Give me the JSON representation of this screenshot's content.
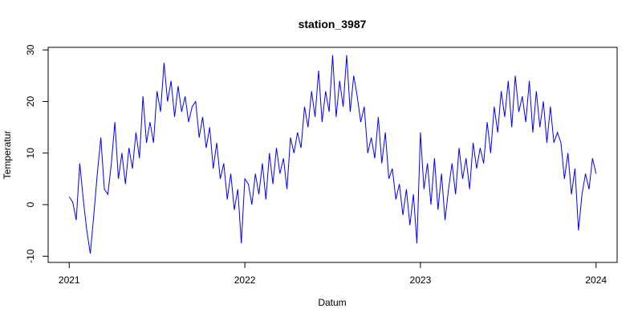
{
  "chart_data": {
    "type": "line",
    "title": "station_3987",
    "xlabel": "Datum",
    "ylabel": "Temperatur",
    "x": [
      2021.0,
      2021.02,
      2021.04,
      2021.06,
      2021.08,
      2021.1,
      2021.12,
      2021.14,
      2021.16,
      2021.18,
      2021.2,
      2021.22,
      2021.24,
      2021.26,
      2021.28,
      2021.3,
      2021.32,
      2021.34,
      2021.36,
      2021.38,
      2021.4,
      2021.42,
      2021.44,
      2021.46,
      2021.48,
      2021.5,
      2021.52,
      2021.54,
      2021.56,
      2021.58,
      2021.6,
      2021.62,
      2021.64,
      2021.66,
      2021.68,
      2021.7,
      2021.72,
      2021.74,
      2021.76,
      2021.78,
      2021.8,
      2021.82,
      2021.84,
      2021.86,
      2021.88,
      2021.9,
      2021.92,
      2021.94,
      2021.96,
      2021.98,
      2022.0,
      2022.02,
      2022.04,
      2022.06,
      2022.08,
      2022.1,
      2022.12,
      2022.14,
      2022.16,
      2022.18,
      2022.2,
      2022.22,
      2022.24,
      2022.26,
      2022.28,
      2022.3,
      2022.32,
      2022.34,
      2022.36,
      2022.38,
      2022.4,
      2022.42,
      2022.44,
      2022.46,
      2022.48,
      2022.5,
      2022.52,
      2022.54,
      2022.56,
      2022.58,
      2022.6,
      2022.62,
      2022.64,
      2022.66,
      2022.68,
      2022.7,
      2022.72,
      2022.74,
      2022.76,
      2022.78,
      2022.8,
      2022.82,
      2022.84,
      2022.86,
      2022.88,
      2022.9,
      2022.92,
      2022.94,
      2022.96,
      2022.98,
      2023.0,
      2023.02,
      2023.04,
      2023.06,
      2023.08,
      2023.1,
      2023.12,
      2023.14,
      2023.16,
      2023.18,
      2023.2,
      2023.22,
      2023.24,
      2023.26,
      2023.28,
      2023.3,
      2023.32,
      2023.34,
      2023.36,
      2023.38,
      2023.4,
      2023.42,
      2023.44,
      2023.46,
      2023.48,
      2023.5,
      2023.52,
      2023.54,
      2023.56,
      2023.58,
      2023.6,
      2023.62,
      2023.64,
      2023.66,
      2023.68,
      2023.7,
      2023.72,
      2023.74,
      2023.76,
      2023.78,
      2023.8,
      2023.82,
      2023.84,
      2023.86,
      2023.88,
      2023.9,
      2023.92,
      2023.94,
      2023.96,
      2023.98,
      2024.0
    ],
    "series": [
      {
        "color": "#0000ff",
        "values": [
          1.5,
          0.5,
          -3,
          8,
          1,
          -5,
          -9.5,
          -2,
          6,
          13,
          3,
          2,
          8,
          16,
          5,
          10,
          4,
          11,
          7,
          14,
          9,
          21,
          12,
          16,
          12,
          22,
          18,
          27.5,
          20,
          24,
          17,
          23,
          18,
          21,
          16,
          19,
          20,
          13,
          17,
          11,
          15,
          7,
          12,
          5,
          8,
          1,
          6,
          -1,
          3,
          -7.5,
          5,
          4,
          0,
          6,
          2,
          8,
          1,
          10,
          4,
          11,
          6,
          9,
          3,
          13,
          10,
          14,
          11,
          19,
          15,
          22,
          17,
          26,
          16,
          22,
          18,
          29,
          17,
          24,
          19,
          29,
          18,
          25,
          21,
          16,
          19,
          10,
          13,
          9,
          17,
          8,
          14,
          5,
          7,
          1,
          4,
          -2,
          3,
          -4,
          2,
          -7.5,
          14,
          3,
          8,
          0,
          9,
          -1,
          6,
          -3,
          3,
          8,
          2,
          11,
          5,
          9,
          3,
          12,
          7,
          11,
          8,
          16,
          10,
          19,
          14,
          22,
          17,
          24,
          15,
          25,
          18,
          21,
          16,
          24,
          14,
          22,
          15,
          20,
          12,
          19,
          12,
          14,
          12,
          5,
          10,
          2,
          7,
          -5,
          2,
          6,
          3,
          9,
          6
        ]
      }
    ],
    "xlim": [
      2020.88,
      2024.12
    ],
    "xticks": [
      2021,
      2022,
      2023,
      2024
    ],
    "ylim": [
      -11.2,
      30.5
    ],
    "yticks": [
      -10,
      0,
      10,
      20,
      30
    ]
  }
}
